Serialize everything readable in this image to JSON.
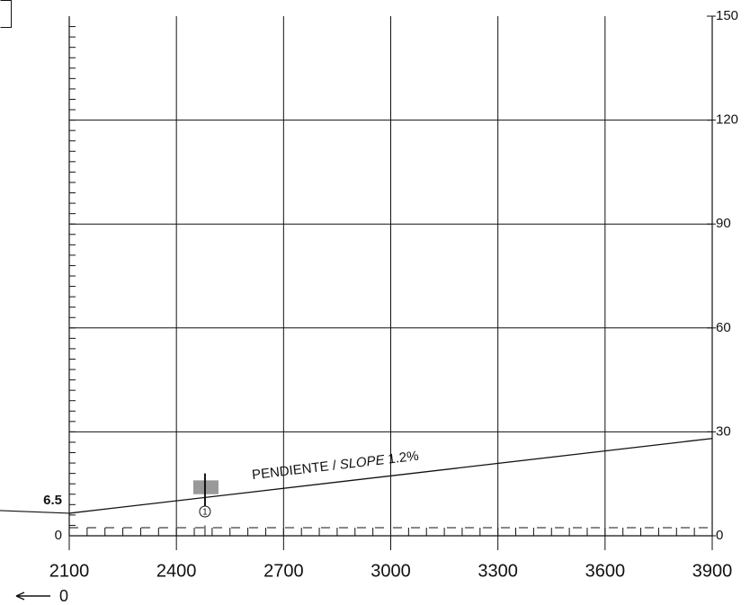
{
  "chart_data": {
    "type": "line",
    "x": [
      2100,
      3900
    ],
    "series": [
      {
        "values": [
          6.5,
          28.1
        ],
        "color": "#111111"
      }
    ],
    "value_labels": [
      "6.5",
      null
    ],
    "xlim": [
      2100,
      3900
    ],
    "xticks": [
      2100,
      2400,
      2700,
      3000,
      3300,
      3600,
      3900
    ],
    "ylim": [
      0,
      150
    ],
    "yticks": [
      0,
      30,
      60,
      90,
      120,
      150
    ],
    "left_ytick": 0,
    "grid": true,
    "y_minor_step": 3,
    "x_minor_step": 50,
    "annotation": {
      "prefix": "PENDIENTE /",
      "italic": "SLOPE",
      "suffix": "1.2%"
    },
    "obstacle": {
      "x": 2480,
      "height": 18,
      "label": "1"
    },
    "origin_label": "0"
  }
}
